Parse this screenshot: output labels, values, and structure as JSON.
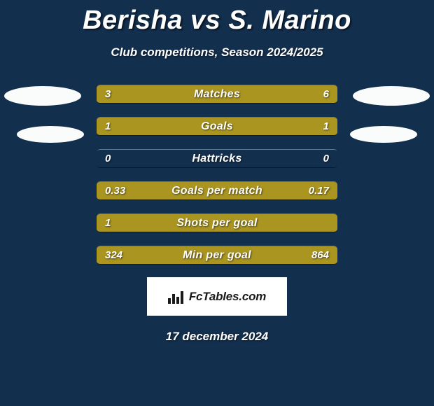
{
  "background_color": "#132f4e",
  "title_color": "#ffffff",
  "header": {
    "title": "Berisha vs S. Marino",
    "subtitle": "Club competitions, Season 2024/2025"
  },
  "colors": {
    "playerA": "#aa9520",
    "playerB": "#aa9520",
    "track": "#132f4e"
  },
  "stats": [
    {
      "label": "Matches",
      "a": "3",
      "b": "6",
      "a_pct": 33.3,
      "b_pct": 66.7
    },
    {
      "label": "Goals",
      "a": "1",
      "b": "1",
      "a_pct": 50,
      "b_pct": 50
    },
    {
      "label": "Hattricks",
      "a": "0",
      "b": "0",
      "a_pct": 0,
      "b_pct": 0
    },
    {
      "label": "Goals per match",
      "a": "0.33",
      "b": "0.17",
      "a_pct": 66,
      "b_pct": 34
    },
    {
      "label": "Shots per goal",
      "a": "1",
      "b": "",
      "a_pct": 100,
      "b_pct": 0
    },
    {
      "label": "Min per goal",
      "a": "324",
      "b": "864",
      "a_pct": 27.3,
      "b_pct": 72.7
    }
  ],
  "branding": {
    "text": "FcTables.com"
  },
  "date": "17 december 2024",
  "typography": {
    "title_fontsize": 38,
    "subtitle_fontsize": 17,
    "label_fontsize": 16,
    "value_fontsize": 15
  }
}
